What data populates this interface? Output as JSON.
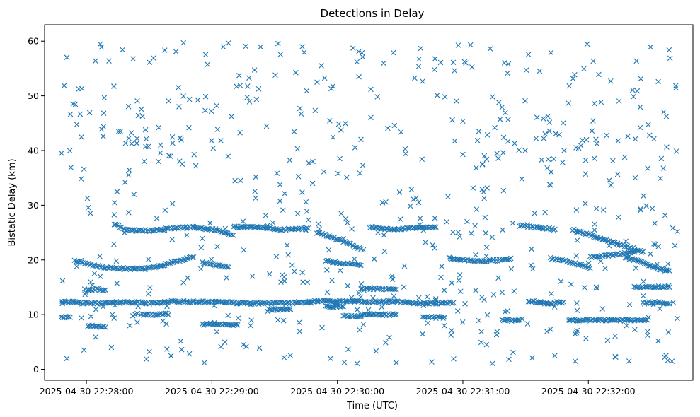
{
  "chart_data": {
    "type": "scatter",
    "title": "Detections in Delay",
    "xlabel": "Time (UTC)",
    "ylabel": "Bistatic Delay (km)",
    "x_ticks": [
      "2025-04-30 22:28:00",
      "2025-04-30 22:29:00",
      "2025-04-30 22:30:00",
      "2025-04-30 22:31:00",
      "2025-04-30 22:32:00"
    ],
    "x_start": "2025-04-30 22:27:48",
    "x_end": "2025-04-30 22:32:43",
    "xlim": [
      "2025-04-30 22:27:40",
      "2025-04-30 22:32:50"
    ],
    "ylim": [
      -2,
      63
    ],
    "y_ticks": [
      0,
      10,
      20,
      30,
      40,
      50,
      60
    ],
    "marker": "x",
    "color": "#1f77b4",
    "grid": false,
    "tracks": [
      {
        "points": [
          [
            0,
            12.5
          ],
          [
            50,
            12.1
          ],
          [
            100,
            12.1
          ],
          [
            150,
            12.3
          ],
          [
            200,
            12.1
          ],
          [
            250,
            12.4
          ],
          [
            300,
            12.3
          ],
          [
            350,
            12.4
          ],
          [
            400,
            12.1
          ],
          [
            500,
            12.1
          ],
          [
            550,
            12.3
          ],
          [
            600,
            12.5
          ],
          [
            650,
            12.4
          ],
          [
            700,
            12.3
          ],
          [
            750,
            12.4
          ],
          [
            800,
            12.1
          ],
          [
            850,
            12.1
          ],
          [
            890,
            12.2
          ]
        ]
      },
      {
        "points": [
          [
            30,
            19.8
          ],
          [
            100,
            18.6
          ],
          [
            160,
            18.3
          ],
          [
            200,
            18.5
          ],
          [
            250,
            19.5
          ],
          [
            300,
            20.5
          ]
        ]
      },
      {
        "points": [
          [
            320,
            19.5
          ],
          [
            360,
            18.9
          ],
          [
            380,
            18.7
          ]
        ]
      },
      {
        "points": [
          [
            120,
            26.5
          ],
          [
            150,
            25.5
          ],
          [
            200,
            25.3
          ],
          [
            250,
            25.8
          ],
          [
            300,
            26.0
          ],
          [
            350,
            25.5
          ],
          [
            390,
            24.5
          ]
        ]
      },
      {
        "points": [
          [
            390,
            26.0
          ],
          [
            450,
            26.0
          ],
          [
            500,
            25.5
          ],
          [
            560,
            25.8
          ]
        ]
      },
      {
        "points": [
          [
            580,
            25.0
          ],
          [
            620,
            24.0
          ],
          [
            650,
            23.0
          ],
          [
            680,
            22.0
          ]
        ]
      },
      {
        "points": [
          [
            700,
            26.0
          ],
          [
            750,
            25.5
          ],
          [
            800,
            25.9
          ],
          [
            850,
            26.0
          ]
        ]
      },
      {
        "points": [
          [
            600,
            19.8
          ],
          [
            640,
            19.4
          ],
          [
            680,
            19.0
          ]
        ]
      },
      {
        "points": [
          [
            880,
            20.3
          ],
          [
            950,
            19.7
          ],
          [
            1000,
            20.0
          ],
          [
            1020,
            20.3
          ]
        ]
      },
      {
        "points": [
          [
            1040,
            26.3
          ],
          [
            1080,
            25.9
          ],
          [
            1120,
            25.6
          ]
        ]
      },
      {
        "points": [
          [
            1110,
            20.3
          ],
          [
            1140,
            19.9
          ],
          [
            1160,
            19.5
          ],
          [
            1180,
            19.0
          ],
          [
            1200,
            18.5
          ]
        ]
      },
      {
        "points": [
          [
            1160,
            25.5
          ],
          [
            1240,
            23.5
          ],
          [
            1320,
            21.5
          ]
        ]
      },
      {
        "points": [
          [
            1200,
            20.5
          ],
          [
            1260,
            21.0
          ],
          [
            1300,
            21.5
          ]
        ]
      },
      {
        "points": [
          [
            1280,
            20.5
          ],
          [
            1320,
            19.5
          ],
          [
            1350,
            18.5
          ],
          [
            1380,
            18.0
          ]
        ]
      },
      {
        "points": [
          [
            1150,
            9.0
          ],
          [
            1200,
            9.0
          ],
          [
            1250,
            9.0
          ],
          [
            1300,
            9.0
          ],
          [
            1330,
            9.0
          ]
        ]
      },
      {
        "points": [
          [
            1300,
            15.0
          ],
          [
            1340,
            15.1
          ],
          [
            1380,
            15.0
          ]
        ]
      },
      {
        "points": [
          [
            1320,
            12.1
          ],
          [
            1350,
            12.3
          ],
          [
            1380,
            12.0
          ]
        ]
      },
      {
        "points": [
          [
            0,
            9.5
          ],
          [
            20,
            9.5
          ]
        ]
      },
      {
        "points": [
          [
            60,
            14.5
          ],
          [
            80,
            14.6
          ],
          [
            100,
            14.5
          ]
        ]
      },
      {
        "points": [
          [
            60,
            8.0
          ],
          [
            80,
            7.8
          ],
          [
            100,
            7.7
          ]
        ]
      },
      {
        "points": [
          [
            180,
            10.0
          ],
          [
            220,
            10.0
          ],
          [
            240,
            10.2
          ]
        ]
      },
      {
        "points": [
          [
            320,
            8.2
          ],
          [
            360,
            8.3
          ],
          [
            400,
            8.1
          ]
        ]
      },
      {
        "points": [
          [
            470,
            10.9
          ],
          [
            520,
            11.0
          ]
        ]
      },
      {
        "points": [
          [
            600,
            11.5
          ],
          [
            640,
            11.5
          ]
        ]
      },
      {
        "points": [
          [
            680,
            14.6
          ],
          [
            720,
            14.8
          ],
          [
            760,
            14.6
          ]
        ]
      },
      {
        "points": [
          [
            640,
            9.7
          ],
          [
            680,
            9.7
          ]
        ]
      },
      {
        "points": [
          [
            680,
            10.0
          ],
          [
            720,
            10.0
          ],
          [
            760,
            10.0
          ]
        ]
      },
      {
        "points": [
          [
            820,
            9.5
          ],
          [
            850,
            9.5
          ],
          [
            870,
            9.5
          ]
        ]
      },
      {
        "points": [
          [
            1000,
            9.0
          ],
          [
            1040,
            9.0
          ]
        ]
      },
      {
        "points": [
          [
            1060,
            12.5
          ],
          [
            1100,
            12.0
          ],
          [
            1140,
            12.3
          ]
        ]
      }
    ],
    "noise": {
      "count": 640,
      "seed": 42,
      "y_range": [
        0.8,
        60.0
      ]
    }
  }
}
